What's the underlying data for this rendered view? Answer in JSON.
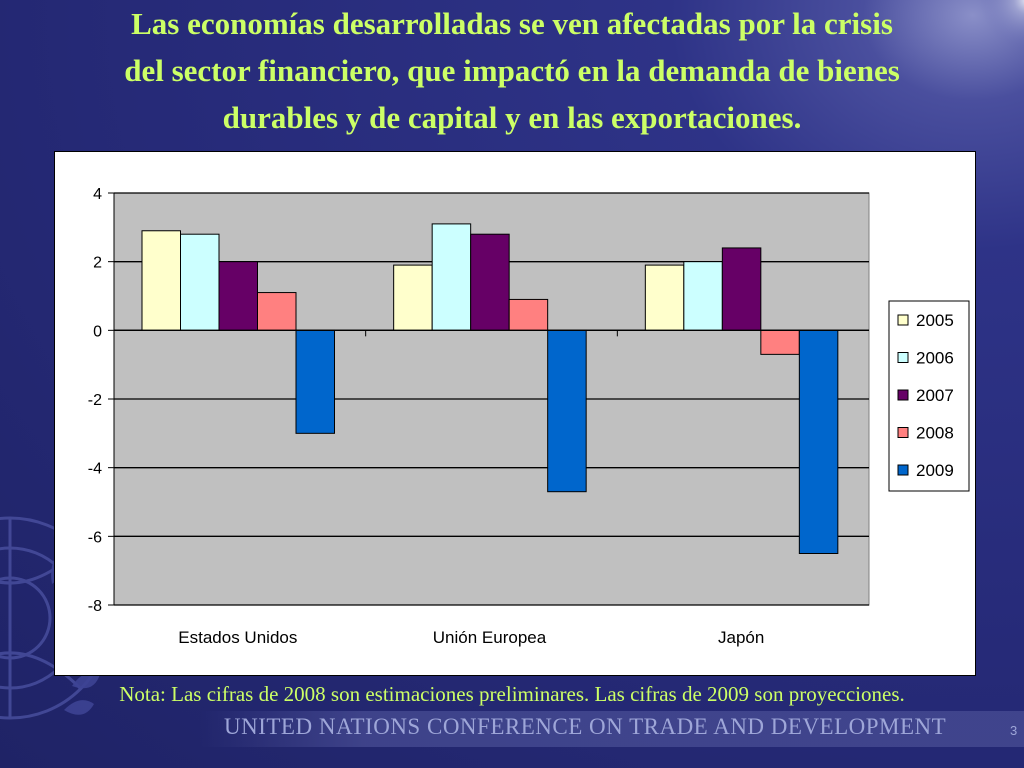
{
  "slide": {
    "title_lines": [
      "Las economías desarrolladas se ven afectadas por la crisis",
      "del sector financiero, que impactó en la demanda de bienes",
      "durables y de capital y en las exportaciones."
    ],
    "note": "Nota: Las cifras de 2008 son estimaciones preliminares. Las cifras de 2009 son proyecciones.",
    "footer": "United Nations Conference on Trade and Development",
    "page_number": "3"
  },
  "colors": {
    "title": "#ccff66",
    "plot_bg": "#c0c0c0"
  },
  "chart_data": {
    "type": "bar",
    "categories": [
      "Estados Unidos",
      "Unión Europea",
      "Japón"
    ],
    "series": [
      {
        "name": "2005",
        "values": [
          2.9,
          1.9,
          1.9
        ],
        "color": "#ffffcc"
      },
      {
        "name": "2006",
        "values": [
          2.8,
          3.1,
          2.0
        ],
        "color": "#ccffff"
      },
      {
        "name": "2007",
        "values": [
          2.0,
          2.8,
          2.4
        ],
        "color": "#660066"
      },
      {
        "name": "2008",
        "values": [
          1.1,
          0.9,
          -0.7
        ],
        "color": "#ff8080"
      },
      {
        "name": "2009",
        "values": [
          -3.0,
          -4.7,
          -6.5
        ],
        "color": "#0066cc"
      }
    ],
    "ylim": [
      -8,
      4
    ],
    "yticks": [
      "4",
      "2",
      "0",
      "-2",
      "-4",
      "-6",
      "-8"
    ],
    "ytick_values": [
      4,
      2,
      0,
      -2,
      -4,
      -6,
      -8
    ],
    "grid": true,
    "legend_position": "right"
  }
}
